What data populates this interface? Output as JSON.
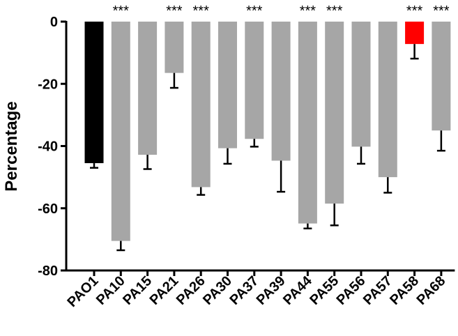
{
  "chart_data": {
    "type": "bar",
    "ylabel": "Percentage",
    "ylim": [
      -80,
      0
    ],
    "yticks": [
      0,
      -20,
      -40,
      -60,
      -80
    ],
    "ytick_labels": [
      "0",
      "-20",
      "-40",
      "-60",
      "-80"
    ],
    "grid": false,
    "categories": [
      "PAO1",
      "PA10",
      "PA15",
      "PA21",
      "PA26",
      "PA30",
      "PA37",
      "PA39",
      "PA44",
      "PA55",
      "PA56",
      "PA57",
      "PA58",
      "PA68"
    ],
    "values": [
      -45.5,
      -70.5,
      -42.8,
      -16.5,
      -53.2,
      -40.7,
      -37.7,
      -44.7,
      -64.9,
      -58.5,
      -40.2,
      -50.0,
      -7.2,
      -35.0
    ],
    "errors": [
      1.5,
      3.0,
      4.6,
      4.8,
      2.5,
      5.0,
      2.5,
      10.0,
      1.6,
      7.0,
      5.5,
      5.0,
      4.7,
      6.5
    ],
    "significance": [
      "",
      "***",
      "",
      "***",
      "***",
      "",
      "***",
      "",
      "***",
      "***",
      "",
      "",
      "***",
      "***"
    ],
    "colors": [
      "#000000",
      "#a6a6a6",
      "#a6a6a6",
      "#a6a6a6",
      "#a6a6a6",
      "#a6a6a6",
      "#a6a6a6",
      "#a6a6a6",
      "#a6a6a6",
      "#a6a6a6",
      "#a6a6a6",
      "#a6a6a6",
      "#ff0000",
      "#a6a6a6"
    ]
  }
}
